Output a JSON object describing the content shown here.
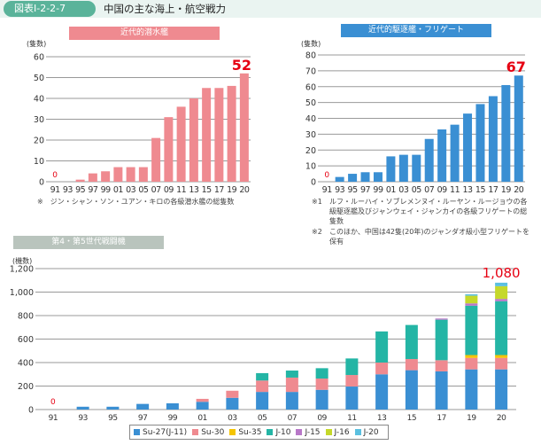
{
  "header": {
    "figure_number": "図表Ⅰ-2-2-7",
    "title": "中国の主な海上・航空戦力"
  },
  "colors": {
    "submarine": "#ef8a90",
    "destroyer": "#3a8fd3",
    "highlight": "#e60012",
    "grid": "#999999"
  },
  "chart_data": [
    {
      "type": "bar",
      "title": "近代的潜水艦",
      "ylabel": "(隻数)",
      "xlabel": "",
      "categories": [
        "91",
        "93",
        "95",
        "97",
        "99",
        "01",
        "03",
        "05",
        "07",
        "09",
        "11",
        "13",
        "15",
        "17",
        "19",
        "20"
      ],
      "values": [
        0,
        0,
        1,
        4,
        5,
        7,
        7,
        7,
        21,
        31,
        36,
        40,
        45,
        45,
        46,
        52
      ],
      "ylim": [
        0,
        60
      ],
      "yticks": [
        "0",
        "10",
        "20",
        "30",
        "40",
        "50",
        "60"
      ],
      "annotations": [
        {
          "category": "91",
          "text": "0"
        },
        {
          "category": "20",
          "text": "52"
        }
      ],
      "notes": [
        "※　ジン・シャン・ソン・ユアン・キロの各級潜水艦の総隻数"
      ],
      "grid": true
    },
    {
      "type": "bar",
      "title": "近代的駆逐艦・フリゲート",
      "ylabel": "(隻数)",
      "xlabel": "",
      "categories": [
        "91",
        "93",
        "95",
        "97",
        "99",
        "01",
        "03",
        "05",
        "07",
        "09",
        "11",
        "13",
        "15",
        "17",
        "19",
        "20"
      ],
      "values": [
        0,
        3,
        5,
        6,
        6,
        16,
        17,
        17,
        27,
        33,
        36,
        43,
        49,
        54,
        61,
        67
      ],
      "ylim": [
        0,
        80
      ],
      "yticks": [
        "0",
        "10",
        "20",
        "30",
        "40",
        "50",
        "60",
        "70",
        "80"
      ],
      "annotations": [
        {
          "category": "91",
          "text": "0"
        },
        {
          "category": "20",
          "text": "67"
        }
      ],
      "notes": [
        {
          "mark": "※1",
          "text": "ルフ・ルーハイ・ソブレメンヌイ・ルーヤン・ルージョウの各級駆逐艦及びジャンウェイ・ジャンカイの各級フリゲートの総隻数"
        },
        {
          "mark": "※2",
          "text": "このほか、中国は42隻(20年)のジャンダオ級小型フリゲートを保有"
        }
      ],
      "grid": true
    },
    {
      "type": "bar",
      "stacked": true,
      "title": "第4・第5世代戦闘機",
      "ylabel": "(機数)",
      "xlabel": "",
      "categories": [
        "91",
        "93",
        "95",
        "97",
        "99",
        "01",
        "03",
        "05",
        "07",
        "09",
        "11",
        "13",
        "15",
        "17",
        "19",
        "20"
      ],
      "ylim": [
        0,
        1200
      ],
      "yticks": [
        "0",
        "200",
        "400",
        "600",
        "800",
        "1,000",
        "1,200"
      ],
      "series": [
        {
          "name": "Su-27(J-11)",
          "color": "#3a8fd3",
          "values": [
            0,
            24,
            24,
            48,
            53,
            66,
            100,
            150,
            150,
            168,
            196,
            300,
            335,
            325,
            342,
            342
          ]
        },
        {
          "name": "Su-30",
          "color": "#ef8a90",
          "values": [
            0,
            0,
            0,
            0,
            0,
            25,
            60,
            97,
            122,
            96,
            98,
            100,
            95,
            95,
            98,
            98
          ]
        },
        {
          "name": "Su-35",
          "color": "#f5c400",
          "values": [
            0,
            0,
            0,
            0,
            0,
            0,
            0,
            0,
            0,
            0,
            0,
            0,
            0,
            0,
            24,
            24
          ]
        },
        {
          "name": "J-10",
          "color": "#24b5a5",
          "values": [
            0,
            0,
            0,
            0,
            0,
            0,
            0,
            63,
            60,
            88,
            141,
            265,
            290,
            345,
            420,
            458
          ]
        },
        {
          "name": "J-15",
          "color": "#b878c8",
          "values": [
            0,
            0,
            0,
            0,
            0,
            0,
            0,
            0,
            0,
            0,
            0,
            0,
            0,
            10,
            20,
            20
          ]
        },
        {
          "name": "J-16",
          "color": "#c5d82a",
          "values": [
            0,
            0,
            0,
            0,
            0,
            0,
            0,
            0,
            0,
            0,
            0,
            0,
            0,
            0,
            65,
            108
          ]
        },
        {
          "name": "J-20",
          "color": "#5bc0e0",
          "values": [
            0,
            0,
            0,
            0,
            0,
            0,
            0,
            0,
            0,
            0,
            0,
            0,
            0,
            0,
            12,
            30
          ]
        }
      ],
      "totals_shown": [
        {
          "category": "91",
          "text": "0"
        },
        {
          "category": "20",
          "text": "1,080"
        }
      ],
      "legend_position": "bottom-center",
      "grid": true
    }
  ]
}
